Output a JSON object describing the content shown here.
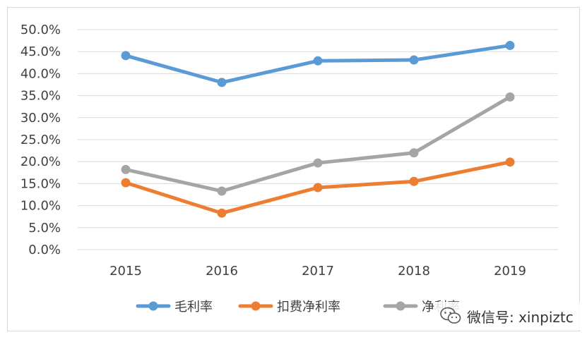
{
  "chart_data": {
    "type": "line",
    "categories": [
      "2015",
      "2016",
      "2017",
      "2018",
      "2019"
    ],
    "y_ticks": [
      "0.0%",
      "5.0%",
      "10.0%",
      "15.0%",
      "20.0%",
      "25.0%",
      "30.0%",
      "35.0%",
      "40.0%",
      "45.0%",
      "50.0%"
    ],
    "ylim": [
      0,
      50
    ],
    "grid": true,
    "legend_position": "bottom",
    "series": [
      {
        "name": "毛利率",
        "color": "#5b9bd5",
        "values": [
          44.1,
          38.0,
          42.9,
          43.1,
          46.4
        ]
      },
      {
        "name": "扣费净利率",
        "color": "#ed7d31",
        "values": [
          15.2,
          8.3,
          14.1,
          15.5,
          19.9
        ]
      },
      {
        "name": "净利率",
        "color": "#a5a5a5",
        "values": [
          18.2,
          13.3,
          19.7,
          22.0,
          34.7
        ]
      }
    ]
  },
  "watermark": {
    "text": "微信号: xinpiztc",
    "icon": "wechat-icon"
  }
}
